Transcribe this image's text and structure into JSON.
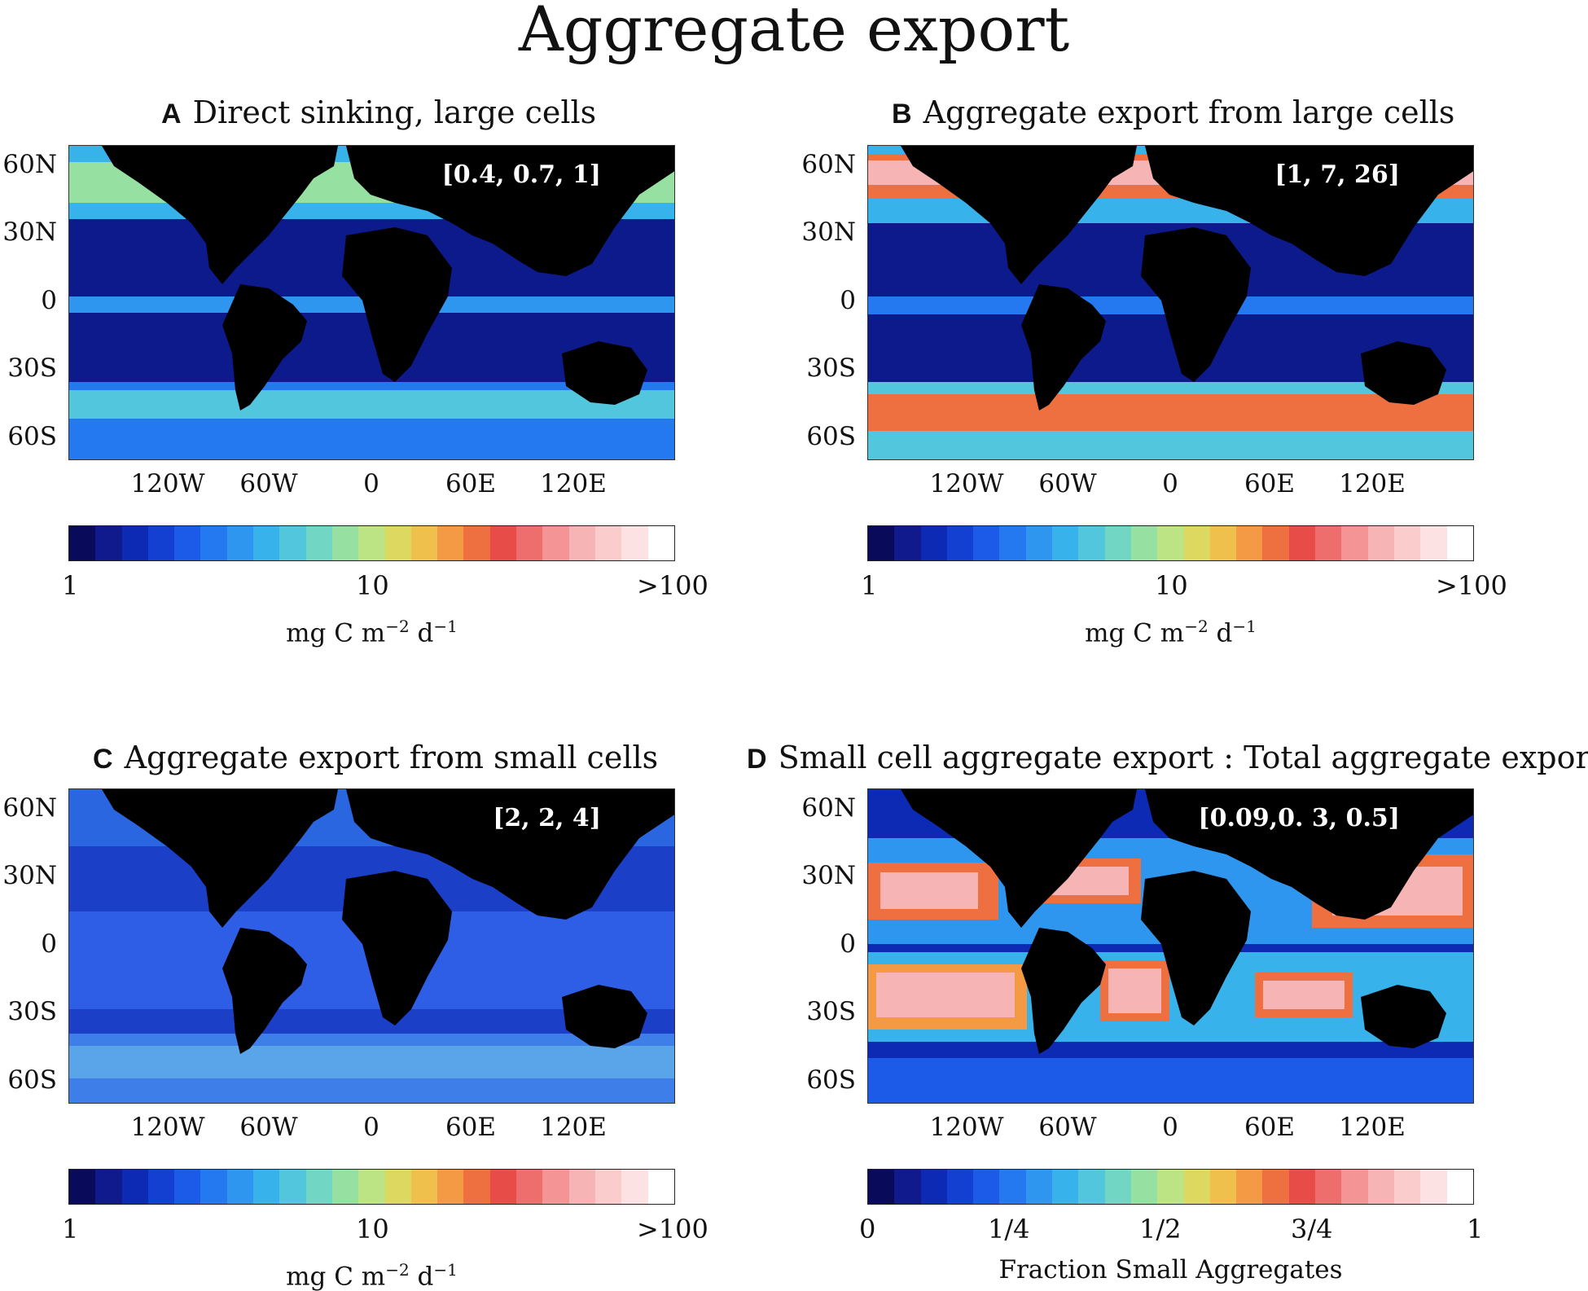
{
  "title": "Aggregate export",
  "lat_labels": [
    "60N",
    "30N",
    "0",
    "30S",
    "60S"
  ],
  "lon_labels": [
    "120W",
    "60W",
    "0",
    "60E",
    "120E"
  ],
  "colorbar_colors": [
    "#0a0a5a",
    "#101a8c",
    "#0c2ab4",
    "#1440d2",
    "#1c5ae8",
    "#2478f0",
    "#2e96ee",
    "#38b2ea",
    "#52c6dc",
    "#72d6c4",
    "#96e0a2",
    "#bce484",
    "#dcd860",
    "#f0c04c",
    "#f49a44",
    "#ee7040",
    "#e84c48",
    "#ee6e6e",
    "#f49494",
    "#f6b4b4",
    "#facccc",
    "#fce2e2",
    "#ffffff"
  ],
  "panels": [
    {
      "letter": "A",
      "title": "Direct sinking, large cells",
      "stats": "[0.4, 0.7, 1]",
      "map_style": "sinking",
      "colorbar": {
        "ticks": [
          "1",
          "10",
          ">100"
        ],
        "label_main": "mg C m",
        "label_exp1": "−2",
        "label_mid": " d",
        "label_exp2": "−1"
      }
    },
    {
      "letter": "B",
      "title": "Aggregate export from large cells",
      "stats": "[1, 7, 26]",
      "map_style": "large",
      "colorbar": {
        "ticks": [
          "1",
          "10",
          ">100"
        ],
        "label_main": "mg C m",
        "label_exp1": "−2",
        "label_mid": " d",
        "label_exp2": "−1"
      }
    },
    {
      "letter": "C",
      "title": "Aggregate export from small cells",
      "stats": "[2, 2, 4]",
      "map_style": "small",
      "colorbar": {
        "ticks": [
          "1",
          "10",
          ">100"
        ],
        "label_main": "mg C m",
        "label_exp1": "−2",
        "label_mid": " d",
        "label_exp2": "−1"
      }
    },
    {
      "letter": "D",
      "title": "Small cell aggregate export : Total aggregate export",
      "stats": "[0.09,0. 3, 0.5]",
      "map_style": "fraction",
      "colorbar": {
        "ticks": [
          "0",
          "1/4",
          "1/2",
          "3/4",
          "1"
        ],
        "label_text": "Fraction Small Aggregates"
      }
    }
  ]
}
